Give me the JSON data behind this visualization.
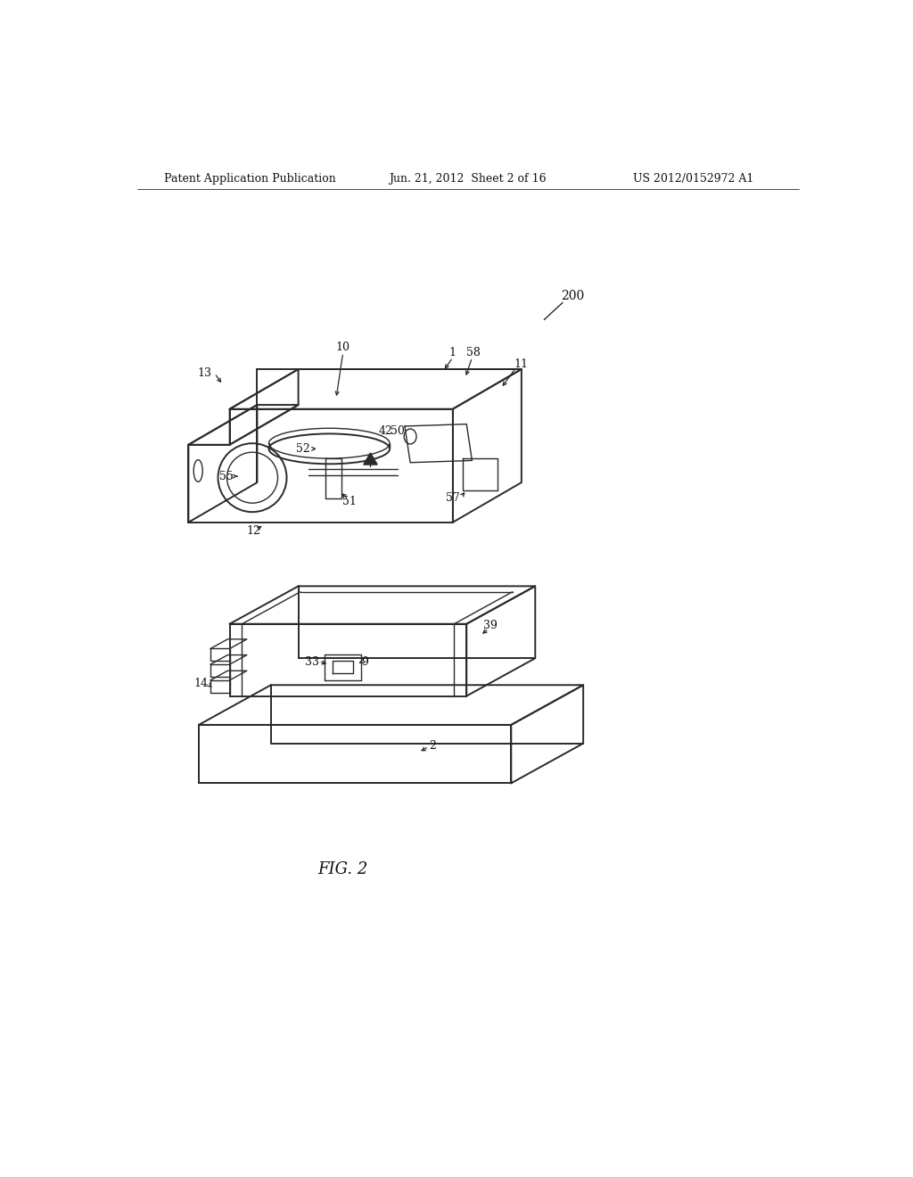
{
  "bg_color": "#ffffff",
  "header_left": "Patent Application Publication",
  "header_mid": "Jun. 21, 2012  Sheet 2 of 16",
  "header_right": "US 2012/0152972 A1",
  "fig_label": "FIG. 2",
  "line_color": "#2a2a2a",
  "lw_thick": 1.4,
  "lw_thin": 1.0,
  "lw_header": 0.6
}
